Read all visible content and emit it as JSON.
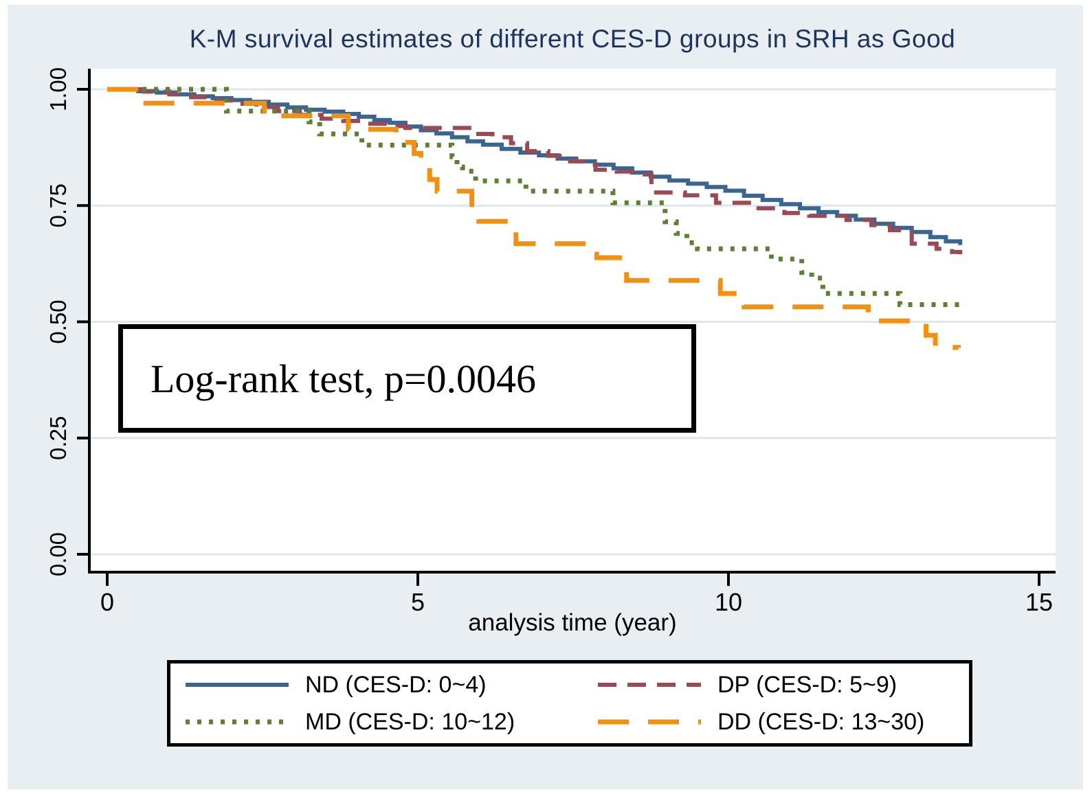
{
  "figure": {
    "background_color": "#e8eef1",
    "plot_background_color": "#ffffff",
    "grid_color": "#dce8ed",
    "axis_color": "#000000",
    "title_color": "#1d3360",
    "text_color": "#000000"
  },
  "chart_data": {
    "type": "line",
    "subtype": "kaplan-meier-step-survival",
    "title": "K-M survival estimates of different CES-D groups in SRH as Good",
    "xlabel": "analysis time (year)",
    "ylabel": "",
    "xlim": [
      0,
      15
    ],
    "ylim": [
      0.0,
      1.0
    ],
    "grid": "horizontal-only",
    "legend_position": "bottom",
    "x_ticks": [
      {
        "value": 0,
        "label": "0"
      },
      {
        "value": 5,
        "label": "5"
      },
      {
        "value": 10,
        "label": "10"
      },
      {
        "value": 15,
        "label": "15"
      }
    ],
    "y_ticks": [
      {
        "value": 0.0,
        "label": "0.00"
      },
      {
        "value": 0.25,
        "label": "0.25"
      },
      {
        "value": 0.5,
        "label": "0.50"
      },
      {
        "value": 0.75,
        "label": "0.75"
      },
      {
        "value": 1.0,
        "label": "1.00"
      }
    ],
    "annotation": {
      "text": "Log-rank test, p=0.0046",
      "test": "Log-rank test",
      "p_value": "0.0046"
    },
    "series": [
      {
        "name": "ND",
        "label": "ND (CES-D: 0~4)",
        "color": "#3a6590",
        "line_style": "solid",
        "points": [
          [
            0,
            1.0
          ],
          [
            0.5,
            0.996
          ],
          [
            0.8,
            0.993
          ],
          [
            1.1,
            0.989
          ],
          [
            1.4,
            0.985
          ],
          [
            1.7,
            0.981
          ],
          [
            2.0,
            0.977
          ],
          [
            2.3,
            0.973
          ],
          [
            2.6,
            0.967
          ],
          [
            2.9,
            0.961
          ],
          [
            3.2,
            0.956
          ],
          [
            3.5,
            0.952
          ],
          [
            3.8,
            0.947
          ],
          [
            4.05,
            0.941
          ],
          [
            4.3,
            0.934
          ],
          [
            4.55,
            0.928
          ],
          [
            4.8,
            0.92
          ],
          [
            5.05,
            0.912
          ],
          [
            5.3,
            0.905
          ],
          [
            5.55,
            0.897
          ],
          [
            5.8,
            0.888
          ],
          [
            6.05,
            0.881
          ],
          [
            6.35,
            0.872
          ],
          [
            6.65,
            0.864
          ],
          [
            6.95,
            0.858
          ],
          [
            7.25,
            0.851
          ],
          [
            7.55,
            0.845
          ],
          [
            7.85,
            0.838
          ],
          [
            8.15,
            0.83
          ],
          [
            8.45,
            0.821
          ],
          [
            8.75,
            0.812
          ],
          [
            9.05,
            0.804
          ],
          [
            9.35,
            0.797
          ],
          [
            9.65,
            0.79
          ],
          [
            9.95,
            0.782
          ],
          [
            10.25,
            0.771
          ],
          [
            10.55,
            0.762
          ],
          [
            10.85,
            0.753
          ],
          [
            11.15,
            0.744
          ],
          [
            11.45,
            0.736
          ],
          [
            11.75,
            0.728
          ],
          [
            12.05,
            0.72
          ],
          [
            12.35,
            0.711
          ],
          [
            12.65,
            0.702
          ],
          [
            12.95,
            0.693
          ],
          [
            13.25,
            0.682
          ],
          [
            13.5,
            0.673
          ],
          [
            13.73,
            0.665
          ]
        ]
      },
      {
        "name": "DP",
        "label": "DP (CES-D: 5~9)",
        "color": "#9a4a54",
        "line_style": "dashed",
        "points": [
          [
            0,
            1.0
          ],
          [
            0.6,
            0.995
          ],
          [
            1.0,
            0.989
          ],
          [
            1.35,
            0.983
          ],
          [
            1.7,
            0.976
          ],
          [
            2.05,
            0.969
          ],
          [
            2.4,
            0.962
          ],
          [
            2.75,
            0.953
          ],
          [
            3.1,
            0.945
          ],
          [
            3.45,
            0.937
          ],
          [
            3.8,
            0.932
          ],
          [
            4.15,
            0.926
          ],
          [
            4.5,
            0.921
          ],
          [
            4.8,
            0.917
          ],
          [
            5.9,
            0.904
          ],
          [
            6.2,
            0.897
          ],
          [
            6.5,
            0.884
          ],
          [
            6.76,
            0.867
          ],
          [
            7.1,
            0.857
          ],
          [
            7.45,
            0.845
          ],
          [
            7.86,
            0.827
          ],
          [
            8.2,
            0.823
          ],
          [
            8.5,
            0.817
          ],
          [
            8.76,
            0.778
          ],
          [
            9.3,
            0.772
          ],
          [
            9.8,
            0.756
          ],
          [
            10.4,
            0.744
          ],
          [
            10.9,
            0.734
          ],
          [
            11.3,
            0.728
          ],
          [
            11.9,
            0.719
          ],
          [
            12.3,
            0.708
          ],
          [
            12.6,
            0.697
          ],
          [
            12.95,
            0.668
          ],
          [
            13.35,
            0.657
          ],
          [
            13.6,
            0.65
          ],
          [
            13.73,
            0.645
          ]
        ]
      },
      {
        "name": "MD",
        "label": "MD (CES-D: 10~12)",
        "color": "#5e7f35",
        "line_style": "dotted",
        "points": [
          [
            0,
            1.0
          ],
          [
            1.92,
            0.953
          ],
          [
            3.25,
            0.93
          ],
          [
            3.42,
            0.904
          ],
          [
            4.1,
            0.88
          ],
          [
            5.55,
            0.855
          ],
          [
            5.63,
            0.833
          ],
          [
            5.72,
            0.824
          ],
          [
            5.93,
            0.803
          ],
          [
            6.74,
            0.781
          ],
          [
            8.14,
            0.756
          ],
          [
            8.98,
            0.715
          ],
          [
            9.16,
            0.69
          ],
          [
            9.33,
            0.67
          ],
          [
            9.5,
            0.657
          ],
          [
            10.69,
            0.635
          ],
          [
            11.18,
            0.606
          ],
          [
            11.34,
            0.594
          ],
          [
            11.52,
            0.561
          ],
          [
            12.76,
            0.537
          ],
          [
            13.78,
            0.535
          ]
        ]
      },
      {
        "name": "DD",
        "label": "DD (CES-D: 13~30)",
        "color": "#f4900f",
        "line_style": "longdash",
        "points": [
          [
            0,
            1.0
          ],
          [
            0.54,
            0.97
          ],
          [
            2.53,
            0.943
          ],
          [
            3.88,
            0.914
          ],
          [
            4.65,
            0.886
          ],
          [
            4.94,
            0.862
          ],
          [
            5.05,
            0.838
          ],
          [
            5.19,
            0.806
          ],
          [
            5.31,
            0.781
          ],
          [
            5.87,
            0.752
          ],
          [
            5.98,
            0.716
          ],
          [
            6.48,
            0.697
          ],
          [
            6.58,
            0.668
          ],
          [
            7.88,
            0.638
          ],
          [
            8.36,
            0.589
          ],
          [
            9.87,
            0.561
          ],
          [
            10.25,
            0.532
          ],
          [
            12.25,
            0.502
          ],
          [
            13.18,
            0.471
          ],
          [
            13.33,
            0.445
          ],
          [
            13.7,
            0.444
          ]
        ]
      }
    ]
  }
}
